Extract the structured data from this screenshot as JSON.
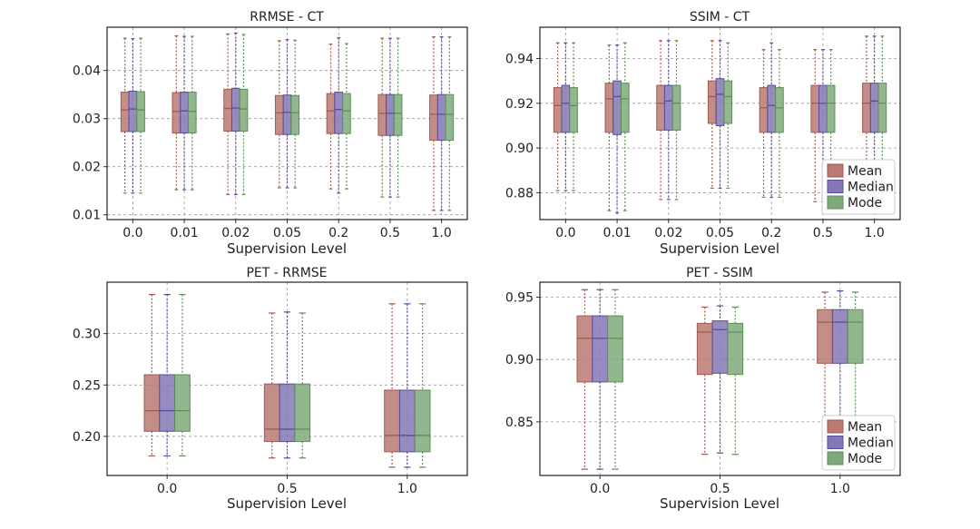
{
  "colors": {
    "mean": "#b87a72",
    "mean_dark": "#a35a50",
    "median": "#8478b4",
    "median_dark": "#5a4c9a",
    "mode": "#7fa97a",
    "mode_dark": "#5d8f57"
  },
  "legend": {
    "mean": "Mean",
    "median": "Median",
    "mode": "Mode"
  },
  "chart_data": [
    {
      "id": "rrmse-ct",
      "type": "boxplot",
      "title": "RRMSE - CT",
      "xlabel": "Supervision Level",
      "ylabel": "",
      "ylim": [
        0.009,
        0.049
      ],
      "yticks": [
        0.01,
        0.02,
        0.03,
        0.04
      ],
      "ytick_labels": [
        "0.01",
        "0.02",
        "0.03",
        "0.04"
      ],
      "grid": true,
      "legend": false,
      "categories": [
        "0.0",
        "0.01",
        "0.02",
        "0.05",
        "0.2",
        "0.5",
        "1.0"
      ],
      "series": [
        {
          "name": "Mean",
          "whislo": [
            0.0145,
            0.0152,
            0.0142,
            0.0156,
            0.0154,
            0.0137,
            0.0109
          ],
          "q1": [
            0.0273,
            0.027,
            0.0274,
            0.0267,
            0.0269,
            0.0265,
            0.0255
          ],
          "med": [
            0.0318,
            0.0315,
            0.0321,
            0.0312,
            0.0316,
            0.0311,
            0.0309
          ],
          "q3": [
            0.0355,
            0.0354,
            0.0361,
            0.0348,
            0.0352,
            0.035,
            0.0349
          ],
          "whishi": [
            0.0467,
            0.0472,
            0.0476,
            0.0462,
            0.0455,
            0.0467,
            0.047
          ]
        },
        {
          "name": "Median",
          "whislo": [
            0.0145,
            0.0152,
            0.0142,
            0.0156,
            0.0145,
            0.0137,
            0.0109
          ],
          "q1": [
            0.0273,
            0.027,
            0.0274,
            0.0267,
            0.0269,
            0.0265,
            0.0255
          ],
          "med": [
            0.032,
            0.0316,
            0.0322,
            0.0313,
            0.0319,
            0.0311,
            0.0309
          ],
          "q3": [
            0.0357,
            0.0355,
            0.0363,
            0.0349,
            0.0355,
            0.035,
            0.035
          ],
          "whishi": [
            0.0466,
            0.0471,
            0.0478,
            0.0464,
            0.0468,
            0.0467,
            0.047
          ]
        },
        {
          "name": "Mode",
          "whislo": [
            0.0145,
            0.0152,
            0.0142,
            0.0156,
            0.0154,
            0.0137,
            0.0109
          ],
          "q1": [
            0.0273,
            0.027,
            0.0274,
            0.0267,
            0.0269,
            0.0265,
            0.0255
          ],
          "med": [
            0.0318,
            0.0315,
            0.032,
            0.0312,
            0.0316,
            0.0311,
            0.0309
          ],
          "q3": [
            0.0356,
            0.0355,
            0.0361,
            0.0348,
            0.0352,
            0.035,
            0.035
          ],
          "whishi": [
            0.0467,
            0.0471,
            0.0475,
            0.0463,
            0.0456,
            0.0467,
            0.047
          ]
        }
      ]
    },
    {
      "id": "ssim-ct",
      "type": "boxplot",
      "title": "SSIM - CT",
      "xlabel": "Supervision Level",
      "ylabel": "",
      "ylim": [
        0.868,
        0.954
      ],
      "yticks": [
        0.88,
        0.9,
        0.92,
        0.94
      ],
      "ytick_labels": [
        "0.88",
        "0.90",
        "0.92",
        "0.94"
      ],
      "grid": true,
      "legend": true,
      "legend_position": "lower-right",
      "categories": [
        "0.0",
        "0.01",
        "0.02",
        "0.05",
        "0.2",
        "0.5",
        "1.0"
      ],
      "series": [
        {
          "name": "Mean",
          "whislo": [
            0.881,
            0.872,
            0.877,
            0.882,
            0.878,
            0.876,
            0.876
          ],
          "q1": [
            0.907,
            0.907,
            0.908,
            0.911,
            0.907,
            0.907,
            0.907
          ],
          "med": [
            0.919,
            0.922,
            0.92,
            0.923,
            0.918,
            0.92,
            0.92
          ],
          "q3": [
            0.927,
            0.929,
            0.928,
            0.93,
            0.927,
            0.928,
            0.929
          ],
          "whishi": [
            0.947,
            0.946,
            0.948,
            0.948,
            0.944,
            0.944,
            0.95
          ]
        },
        {
          "name": "Median",
          "whislo": [
            0.881,
            0.871,
            0.877,
            0.882,
            0.878,
            0.876,
            0.876
          ],
          "q1": [
            0.907,
            0.906,
            0.908,
            0.91,
            0.907,
            0.907,
            0.907
          ],
          "med": [
            0.92,
            0.923,
            0.921,
            0.924,
            0.919,
            0.92,
            0.921
          ],
          "q3": [
            0.928,
            0.93,
            0.928,
            0.931,
            0.928,
            0.928,
            0.929
          ],
          "whishi": [
            0.947,
            0.946,
            0.948,
            0.948,
            0.947,
            0.944,
            0.95
          ]
        },
        {
          "name": "Mode",
          "whislo": [
            0.881,
            0.872,
            0.877,
            0.882,
            0.878,
            0.876,
            0.876
          ],
          "q1": [
            0.907,
            0.907,
            0.908,
            0.911,
            0.907,
            0.907,
            0.907
          ],
          "med": [
            0.919,
            0.922,
            0.92,
            0.923,
            0.918,
            0.92,
            0.92
          ],
          "q3": [
            0.927,
            0.929,
            0.928,
            0.93,
            0.927,
            0.928,
            0.929
          ],
          "whishi": [
            0.947,
            0.947,
            0.948,
            0.947,
            0.944,
            0.944,
            0.95
          ]
        }
      ]
    },
    {
      "id": "pet-rrmse",
      "type": "boxplot",
      "title": "PET - RRMSE",
      "xlabel": "Supervision Level",
      "ylabel": "",
      "ylim": [
        0.162,
        0.35
      ],
      "yticks": [
        0.2,
        0.25,
        0.3
      ],
      "ytick_labels": [
        "0.20",
        "0.25",
        "0.30"
      ],
      "grid": true,
      "legend": false,
      "categories": [
        "0.0",
        "0.5",
        "1.0"
      ],
      "series": [
        {
          "name": "Mean",
          "whislo": [
            0.181,
            0.179,
            0.17
          ],
          "q1": [
            0.205,
            0.195,
            0.185
          ],
          "med": [
            0.225,
            0.207,
            0.201
          ],
          "q3": [
            0.26,
            0.251,
            0.245
          ],
          "whishi": [
            0.338,
            0.32,
            0.329
          ]
        },
        {
          "name": "Median",
          "whislo": [
            0.181,
            0.179,
            0.17
          ],
          "q1": [
            0.205,
            0.195,
            0.185
          ],
          "med": [
            0.225,
            0.207,
            0.201
          ],
          "q3": [
            0.26,
            0.251,
            0.245
          ],
          "whishi": [
            0.338,
            0.321,
            0.329
          ]
        },
        {
          "name": "Mode",
          "whislo": [
            0.181,
            0.179,
            0.17
          ],
          "q1": [
            0.205,
            0.195,
            0.185
          ],
          "med": [
            0.225,
            0.207,
            0.201
          ],
          "q3": [
            0.26,
            0.251,
            0.245
          ],
          "whishi": [
            0.338,
            0.32,
            0.329
          ]
        }
      ]
    },
    {
      "id": "pet-ssim",
      "type": "boxplot",
      "title": "PET - SSIM",
      "xlabel": "Supervision Level",
      "ylabel": "",
      "ylim": [
        0.807,
        0.962
      ],
      "yticks": [
        0.85,
        0.9,
        0.95
      ],
      "ytick_labels": [
        "0.85",
        "0.90",
        "0.95"
      ],
      "grid": true,
      "legend": true,
      "legend_position": "lower-right",
      "categories": [
        "0.0",
        "0.5",
        "1.0"
      ],
      "series": [
        {
          "name": "Mean",
          "whislo": [
            0.812,
            0.824,
            0.835
          ],
          "q1": [
            0.882,
            0.888,
            0.897
          ],
          "med": [
            0.917,
            0.922,
            0.93
          ],
          "q3": [
            0.935,
            0.929,
            0.94
          ],
          "whishi": [
            0.956,
            0.942,
            0.954
          ]
        },
        {
          "name": "Median",
          "whislo": [
            0.812,
            0.825,
            0.836
          ],
          "q1": [
            0.882,
            0.889,
            0.897
          ],
          "med": [
            0.917,
            0.924,
            0.93
          ],
          "q3": [
            0.935,
            0.931,
            0.94
          ],
          "whishi": [
            0.956,
            0.943,
            0.955
          ]
        },
        {
          "name": "Mode",
          "whislo": [
            0.812,
            0.824,
            0.835
          ],
          "q1": [
            0.882,
            0.888,
            0.897
          ],
          "med": [
            0.917,
            0.922,
            0.93
          ],
          "q3": [
            0.935,
            0.929,
            0.94
          ],
          "whishi": [
            0.956,
            0.942,
            0.954
          ]
        }
      ]
    }
  ]
}
